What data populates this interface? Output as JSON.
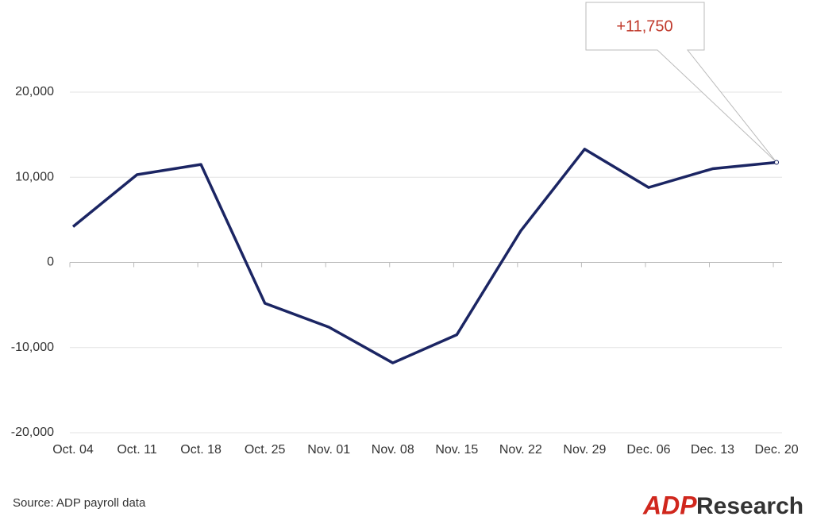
{
  "chart_data": {
    "type": "line",
    "categories": [
      "Oct. 04",
      "Oct. 11",
      "Oct. 18",
      "Oct. 25",
      "Nov. 01",
      "Nov. 08",
      "Nov. 15",
      "Nov. 22",
      "Nov. 29",
      "Dec. 06",
      "Dec. 13",
      "Dec. 20"
    ],
    "series": [
      {
        "color": "#1b2563",
        "values": [
          4200,
          10300,
          11500,
          -4800,
          -7600,
          -11800,
          -8500,
          3700,
          13300,
          8800,
          11000,
          11750
        ],
        "value_labels": [
          null,
          null,
          null,
          null,
          null,
          null,
          null,
          null,
          null,
          null,
          null,
          "+11,750"
        ]
      }
    ],
    "ylim": [
      -20000,
      20000
    ],
    "yticks": [
      {
        "value": -20000,
        "label": "-20,000"
      },
      {
        "value": -10000,
        "label": "-10,000"
      },
      0,
      {
        "value": 10000,
        "label": "10,000"
      },
      {
        "value": 20000,
        "label": "20,000"
      }
    ],
    "grid": true,
    "source": "Source: ADP payroll data",
    "logo": {
      "brand": "ADP",
      "text": "Research"
    }
  }
}
